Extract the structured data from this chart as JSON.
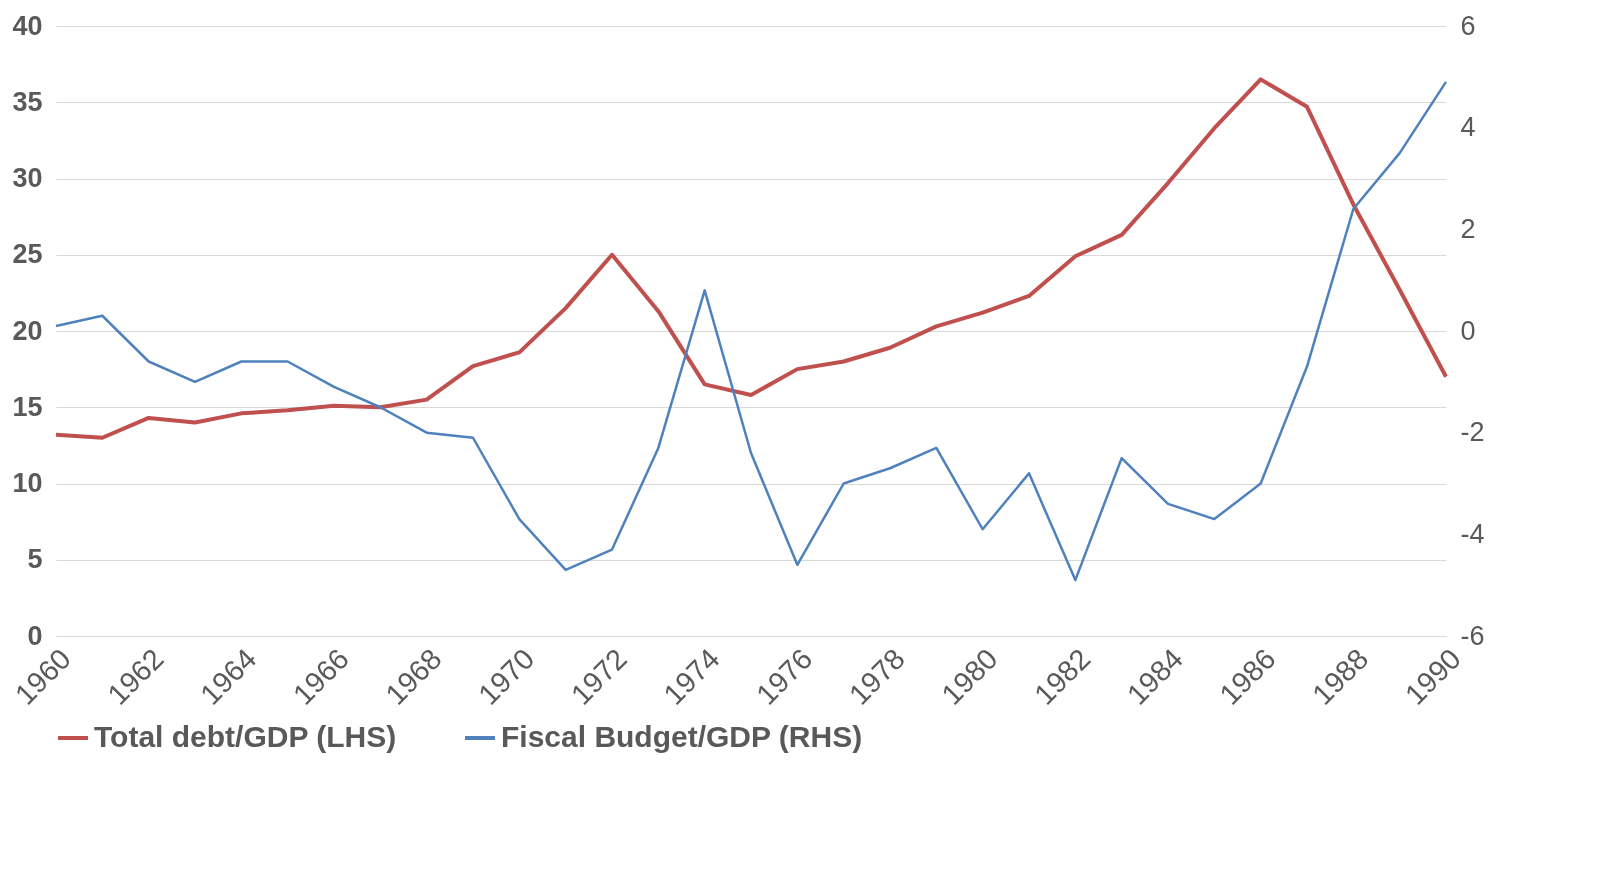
{
  "chart_data": {
    "type": "line",
    "x": [
      1960,
      1961,
      1962,
      1963,
      1964,
      1965,
      1966,
      1967,
      1968,
      1969,
      1970,
      1971,
      1972,
      1973,
      1974,
      1975,
      1976,
      1977,
      1978,
      1979,
      1980,
      1981,
      1982,
      1983,
      1984,
      1985,
      1986,
      1987,
      1988,
      1989,
      1990
    ],
    "series": [
      {
        "name": "Total debt/GDP (LHS)",
        "color": "#c0504d",
        "values": [
          13.2,
          13.0,
          14.3,
          14.0,
          14.6,
          14.8,
          15.1,
          15.0,
          15.5,
          17.7,
          18.6,
          21.5,
          25.0,
          21.3,
          16.5,
          15.8,
          17.5,
          18.0,
          18.9,
          20.3,
          21.2,
          22.3,
          24.9,
          26.3,
          29.7,
          33.3,
          36.5,
          34.7,
          28.3,
          22.7,
          17.0
        ]
      },
      {
        "name": "Fiscal Budget/GDP (RHS)",
        "color": "#4f81bd",
        "axis": "y2",
        "values": [
          0.1,
          0.3,
          -0.6,
          -1.0,
          -0.6,
          -0.6,
          -1.1,
          -1.5,
          -2.0,
          -2.1,
          -3.7,
          -4.7,
          -4.3,
          -2.3,
          0.8,
          -2.4,
          -4.6,
          -3.0,
          -2.7,
          -2.3,
          -3.9,
          -2.8,
          -4.9,
          -2.5,
          -3.4,
          -3.7,
          -3.0,
          -0.7,
          2.4,
          3.5,
          4.9
        ]
      }
    ],
    "xlim": [
      1960,
      1990
    ],
    "xticks": [
      1960,
      1962,
      1964,
      1966,
      1968,
      1970,
      1972,
      1974,
      1976,
      1978,
      1980,
      1982,
      1984,
      1986,
      1988,
      1990
    ],
    "ylim": [
      0,
      40
    ],
    "yticks": [
      0,
      5,
      10,
      15,
      20,
      25,
      30,
      35,
      40
    ],
    "y2lim": [
      -6,
      6
    ],
    "y2ticks": [
      -6,
      -4,
      -2,
      0,
      2,
      4,
      6
    ],
    "grid": "y",
    "legend": "bottom"
  }
}
